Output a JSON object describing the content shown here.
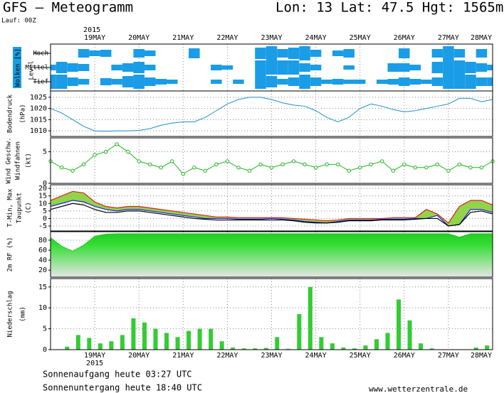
{
  "header": {
    "title": "GFS – Meteogramm",
    "location": "Lon: 13 Lat: 47.5 Hgt: 1565m",
    "run": "Lauf: 00Z"
  },
  "footer": {
    "sunrise": "Sonnenaufgang heute 03:27 UTC",
    "sunset": "Sonnenuntergang heute 18:40 UTC",
    "source": "www.wetterzentrale.de"
  },
  "time_axis": {
    "year": "2015",
    "xlim": [
      0,
      240
    ],
    "xticks": [
      {
        "value": 24,
        "label": "19MAY"
      },
      {
        "value": 48,
        "label": "20MAY"
      },
      {
        "value": 72,
        "label": "21MAY"
      },
      {
        "value": 96,
        "label": "22MAY"
      },
      {
        "value": 120,
        "label": "23MAY"
      },
      {
        "value": 144,
        "label": "24MAY"
      },
      {
        "value": 168,
        "label": "25MAY"
      },
      {
        "value": 192,
        "label": "26MAY"
      },
      {
        "value": 216,
        "label": "27MAY"
      },
      {
        "value": 240,
        "label": "28MAY"
      }
    ],
    "x": [
      0,
      6,
      12,
      18,
      24,
      30,
      36,
      42,
      48,
      54,
      60,
      66,
      72,
      78,
      84,
      90,
      96,
      102,
      108,
      114,
      120,
      126,
      132,
      138,
      144,
      150,
      156,
      162,
      168,
      174,
      180,
      186,
      192,
      198,
      204,
      210,
      216,
      222,
      228,
      234,
      240
    ]
  },
  "chart_data": [
    {
      "type": "cloud",
      "ylabel": "Wolken [%]",
      "ylabel2": "Level",
      "series": [
        {
          "name": "Hoch",
          "color": "#1a9de6",
          "values": [
            0,
            0,
            0,
            60,
            40,
            50,
            0,
            0,
            60,
            40,
            0,
            0,
            0,
            70,
            0,
            0,
            0,
            0,
            0,
            80,
            100,
            60,
            80,
            100,
            50,
            0,
            40,
            60,
            0,
            0,
            0,
            0,
            70,
            0,
            0,
            60,
            100,
            60,
            0,
            60,
            0
          ]
        },
        {
          "name": "Mittel",
          "color": "#1a9de6",
          "values": [
            40,
            80,
            60,
            50,
            0,
            0,
            40,
            60,
            80,
            40,
            0,
            0,
            0,
            0,
            0,
            40,
            30,
            0,
            0,
            100,
            100,
            100,
            100,
            60,
            40,
            0,
            0,
            30,
            0,
            0,
            0,
            60,
            60,
            40,
            0,
            80,
            100,
            100,
            80,
            60,
            40
          ]
        },
        {
          "name": "Tief",
          "color": "#1a9de6",
          "values": [
            100,
            100,
            60,
            40,
            0,
            50,
            40,
            80,
            100,
            60,
            40,
            30,
            0,
            0,
            0,
            30,
            0,
            30,
            0,
            100,
            80,
            40,
            60,
            100,
            60,
            30,
            40,
            30,
            30,
            0,
            30,
            40,
            60,
            40,
            30,
            60,
            100,
            100,
            100,
            60,
            60
          ]
        }
      ]
    },
    {
      "type": "line",
      "ylabel": "Bodendruck",
      "unit": "(hPa)",
      "ylim": [
        1007.5,
        1027.8
      ],
      "yticks": [
        1010,
        1015,
        1020,
        1025
      ],
      "grid": true,
      "series": [
        {
          "color": "#1e8fd0",
          "values": [
            1020,
            1018,
            1015,
            1012,
            1010,
            1009.8,
            1010,
            1010,
            1010.2,
            1011,
            1012.5,
            1013.5,
            1014,
            1014,
            1016,
            1019,
            1022,
            1024,
            1025,
            1025,
            1024,
            1022.5,
            1021.5,
            1021,
            1019,
            1016,
            1014,
            1016,
            1020,
            1022,
            1021,
            1019.5,
            1018.5,
            1019,
            1020,
            1021,
            1022,
            1024.5,
            1024.5,
            1023,
            1024
          ]
        }
      ]
    },
    {
      "type": "line",
      "markers": true,
      "ylabel": "Wind Geschw.",
      "ylabel2": "Windfahnen",
      "unit": "(kt)",
      "ylim": [
        0,
        7.2
      ],
      "yticks": [
        0,
        5
      ],
      "grid": true,
      "series": [
        {
          "color": "#22b422",
          "values": [
            3.5,
            2.5,
            2,
            3,
            4.5,
            5,
            6.2,
            5,
            3.5,
            3,
            2.5,
            3.5,
            1.5,
            2.5,
            2,
            3,
            3.5,
            2.5,
            2,
            3,
            2.5,
            3,
            3.5,
            3,
            2.5,
            3,
            3,
            2,
            2.5,
            3,
            3.5,
            2,
            3,
            2.5,
            2.5,
            3,
            2,
            3,
            2.5,
            2.5,
            3.5
          ]
        }
      ]
    },
    {
      "type": "temperature",
      "ylabel": "T-Min, Max",
      "ylabel2": "Taupunkt",
      "unit": "(C)",
      "ylim": [
        -8.3,
        22.4
      ],
      "yticks": [
        -5,
        0,
        5,
        10,
        15,
        20
      ],
      "grid": true,
      "fill": "#7fcc2a",
      "series": [
        {
          "color": "#e02020",
          "values": [
            12,
            15,
            18,
            17,
            11,
            8,
            7,
            8,
            8,
            7,
            6,
            5,
            4,
            3,
            2,
            1,
            1,
            0.5,
            0.5,
            0.5,
            0.5,
            0.5,
            0,
            -0.5,
            -1,
            -1.5,
            -1,
            0,
            0,
            0,
            0,
            0.5,
            0.5,
            0.5,
            6,
            3,
            -3,
            8,
            12,
            12,
            9
          ]
        },
        {
          "color": "#2020e0",
          "values": [
            8,
            10,
            12,
            11,
            8,
            6,
            5,
            6,
            6,
            5,
            4,
            3,
            2,
            1,
            0,
            0,
            0,
            -0.5,
            -0.5,
            -0.5,
            0,
            -0.5,
            -1,
            -2,
            -2.5,
            -3,
            -2,
            -1,
            -1,
            -1,
            -0.5,
            -0.5,
            -0.5,
            0,
            0,
            2,
            -5,
            -4,
            6,
            6,
            4
          ]
        },
        {
          "color": "#000000",
          "values": [
            6,
            8,
            10,
            9,
            6,
            4,
            4,
            5,
            5,
            4,
            3,
            2,
            1,
            0,
            -0.5,
            -1,
            -1,
            -1,
            -1,
            -1,
            -1,
            -1,
            -1.5,
            -2.5,
            -3,
            -3,
            -2.5,
            -1.5,
            -1.5,
            -1.5,
            -1,
            -1,
            -1,
            -0.5,
            0,
            0,
            -5,
            -4,
            4,
            5,
            3
          ]
        }
      ]
    },
    {
      "type": "area",
      "ylabel": "2m RF (%)",
      "ylim": [
        6,
        97
      ],
      "yticks": [
        20,
        40,
        60,
        80
      ],
      "grid": true,
      "series": [
        {
          "color": "#22cc22",
          "values": [
            85,
            68,
            58,
            70,
            88,
            92,
            93,
            93,
            93,
            93,
            93,
            93,
            93,
            93,
            93,
            93,
            93,
            93,
            93,
            93,
            93,
            93,
            93,
            93,
            93,
            93,
            93,
            93,
            93,
            93,
            93,
            93,
            93,
            93,
            93,
            93,
            93,
            86,
            93,
            93,
            93
          ]
        }
      ]
    },
    {
      "type": "bar",
      "ylabel": "Niederschlag",
      "unit": "(mm)",
      "ylim": [
        0,
        17
      ],
      "yticks": [
        0,
        5,
        10,
        15
      ],
      "grid": true,
      "color": "#33cc33",
      "x": [
        3,
        9,
        15,
        21,
        27,
        33,
        39,
        45,
        51,
        57,
        63,
        69,
        75,
        81,
        87,
        93,
        99,
        105,
        111,
        117,
        123,
        129,
        135,
        141,
        147,
        153,
        159,
        165,
        171,
        177,
        183,
        189,
        195,
        201,
        207,
        213,
        219,
        225,
        231,
        237
      ],
      "values": [
        0,
        0.7,
        3.5,
        2.8,
        1.5,
        2,
        3.5,
        7.5,
        6.5,
        5,
        4,
        3,
        4.5,
        5,
        5,
        2,
        0.5,
        0.3,
        0.3,
        0.4,
        3,
        0.2,
        8.5,
        15,
        3,
        1.5,
        0.5,
        0.3,
        1,
        2.5,
        4,
        12,
        7,
        1.5,
        0.3,
        0,
        0,
        0,
        0.5,
        1
      ]
    }
  ]
}
